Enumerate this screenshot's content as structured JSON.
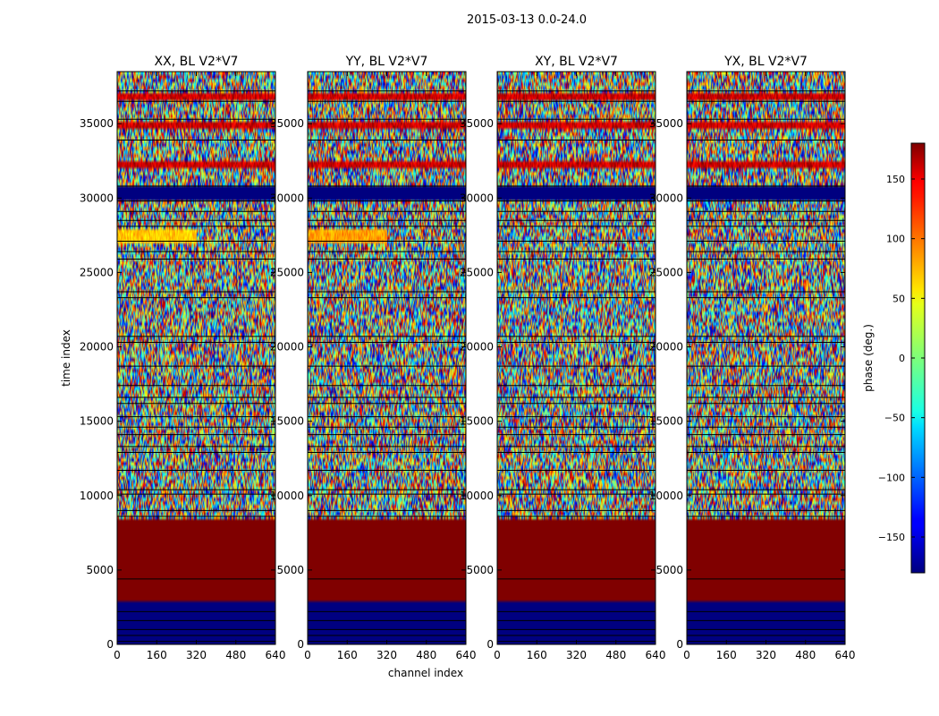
{
  "chart_data": {
    "type": "heatmap",
    "suptitle": "2015-03-13 0.0-24.0",
    "xlabel": "channel index",
    "ylabel": "time index",
    "xlim": [
      0,
      640
    ],
    "ylim": [
      0,
      38500
    ],
    "xticks": [
      0,
      160,
      320,
      480,
      640
    ],
    "yticks": [
      0,
      5000,
      10000,
      15000,
      20000,
      25000,
      30000,
      35000
    ],
    "panels": [
      {
        "id": "xx",
        "title": "XX, BL V2*V7"
      },
      {
        "id": "yy",
        "title": "YY, BL V2*V7"
      },
      {
        "id": "xy",
        "title": "XY, BL V2*V7"
      },
      {
        "id": "yx",
        "title": "YX, BL V2*V7"
      }
    ],
    "colorbar": {
      "label": "phase (deg.)",
      "colormap": "jet",
      "range": [
        -180,
        180
      ],
      "ticks": [
        150,
        100,
        50,
        0,
        -50,
        -100,
        -150
      ],
      "tick_labels": [
        "150",
        "100",
        "50",
        "0",
        "−50",
        "−100",
        "−150"
      ]
    }
  }
}
